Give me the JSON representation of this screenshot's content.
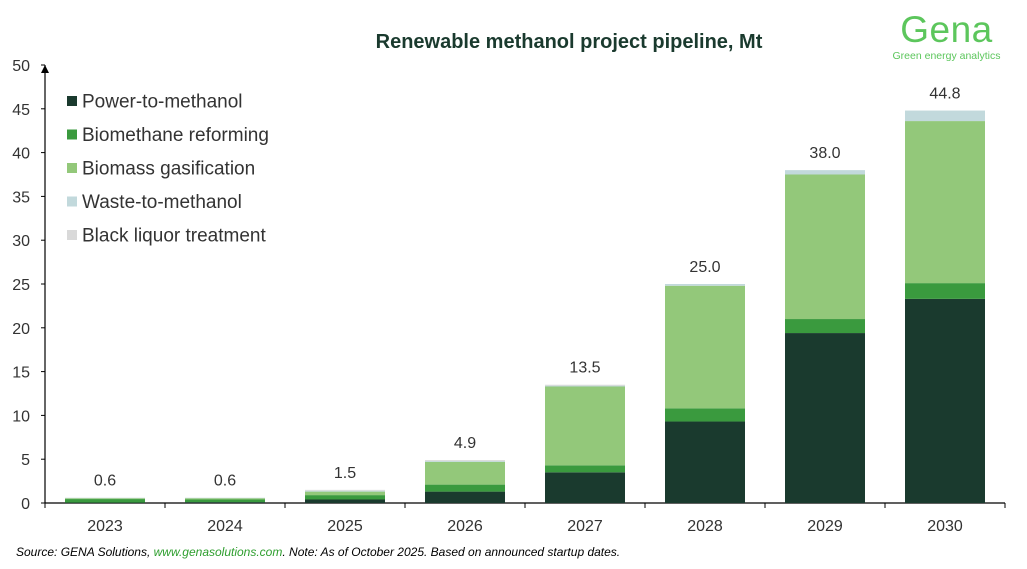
{
  "chart_data": {
    "type": "bar",
    "stacked": true,
    "title": "Renewable methanol project pipeline, Mt",
    "xlabel": "",
    "ylabel": "",
    "categories": [
      "2023",
      "2024",
      "2025",
      "2026",
      "2027",
      "2028",
      "2029",
      "2030"
    ],
    "ylim": [
      0,
      50
    ],
    "yticks": [
      0,
      5,
      10,
      15,
      20,
      25,
      30,
      35,
      40,
      45,
      50
    ],
    "grid": false,
    "legend_position": "top-left",
    "series": [
      {
        "name": "Power-to-methanol",
        "color": "#1a3a2e",
        "values": [
          0.05,
          0.1,
          0.4,
          1.3,
          3.5,
          9.3,
          19.4,
          23.3
        ]
      },
      {
        "name": "Biomethane reforming",
        "color": "#3a9a3e",
        "values": [
          0.4,
          0.3,
          0.5,
          0.8,
          0.8,
          1.5,
          1.6,
          1.8
        ]
      },
      {
        "name": "Biomass gasification",
        "color": "#93c87a",
        "values": [
          0.1,
          0.15,
          0.4,
          2.6,
          9.0,
          14.0,
          16.5,
          18.5
        ]
      },
      {
        "name": "Waste-to-methanol",
        "color": "#c2d9dc",
        "values": [
          0.05,
          0.05,
          0.1,
          0.1,
          0.1,
          0.2,
          0.5,
          1.2
        ]
      },
      {
        "name": "Black liquor treatment",
        "color": "#d9d9d9",
        "values": [
          0.0,
          0.0,
          0.1,
          0.1,
          0.1,
          0.0,
          0.0,
          0.0
        ]
      }
    ],
    "totals": [
      "0.6",
      "0.6",
      "1.5",
      "4.9",
      "13.5",
      "25.0",
      "38.0",
      "44.8"
    ]
  },
  "logo": {
    "word": "Gena",
    "tagline": "Green energy analytics",
    "color": "#5cc65c"
  },
  "footer": {
    "source_prefix": "Source: GENA Solutions, ",
    "source_link": "www.genasolutions.com",
    "source_suffix": ". Note: As of October 2025. Based on announced startup dates."
  }
}
